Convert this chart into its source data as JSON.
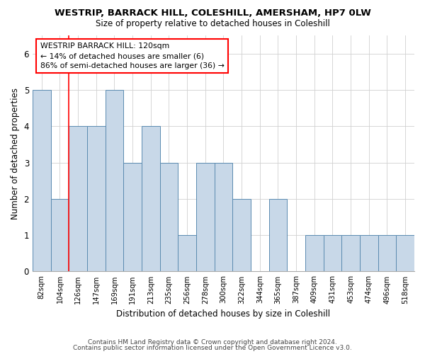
{
  "title1": "WESTRIP, BARRACK HILL, COLESHILL, AMERSHAM, HP7 0LW",
  "title2": "Size of property relative to detached houses in Coleshill",
  "xlabel": "Distribution of detached houses by size in Coleshill",
  "ylabel": "Number of detached properties",
  "categories": [
    "82sqm",
    "104sqm",
    "126sqm",
    "147sqm",
    "169sqm",
    "191sqm",
    "213sqm",
    "235sqm",
    "256sqm",
    "278sqm",
    "300sqm",
    "322sqm",
    "344sqm",
    "365sqm",
    "387sqm",
    "409sqm",
    "431sqm",
    "453sqm",
    "474sqm",
    "496sqm",
    "518sqm"
  ],
  "values": [
    5,
    2,
    4,
    4,
    5,
    3,
    4,
    3,
    1,
    3,
    3,
    2,
    0,
    2,
    0,
    1,
    1,
    1,
    1,
    1,
    1
  ],
  "bar_color": "#c8d8e8",
  "bar_edge_color": "#5a8ab0",
  "red_line_x": 1.5,
  "annotation_line1": "WESTRIP BARRACK HILL: 120sqm",
  "annotation_line2": "← 14% of detached houses are smaller (6)",
  "annotation_line3": "86% of semi-detached houses are larger (36) →",
  "ylim": [
    0,
    6.5
  ],
  "yticks": [
    0,
    1,
    2,
    3,
    4,
    5,
    6
  ],
  "footer1": "Contains HM Land Registry data © Crown copyright and database right 2024.",
  "footer2": "Contains public sector information licensed under the Open Government Licence v3.0."
}
